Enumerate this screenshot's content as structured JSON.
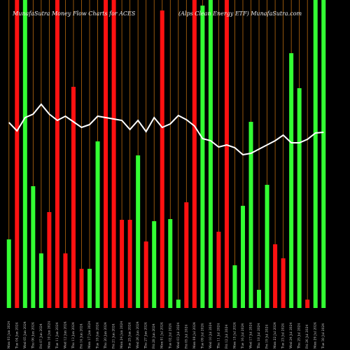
{
  "chart_data": {
    "type": "bar",
    "title": "MunafaSutra  Money Flow  Charts for ACES",
    "subtitle": "(Alps Clean Energy ETF) MunafaSutra.com",
    "categories": [
      "Mon 03 Jun 2024",
      "Tue 04 Jun 2024",
      "Wed 05 Jun 2024",
      "Thu 06 Jun 2024",
      "Fri 07 Jun 2024",
      "Mon 10 Jun 2024",
      "Tue 11 Jun 2024",
      "Wed 12 Jun 2024",
      "Thu 13 Jun 2024",
      "Fri 14 Jun 2024",
      "Mon 17 Jun 2024",
      "Tue 18 Jun 2024",
      "Thu 20 Jun 2024",
      "Fri 21 Jun 2024",
      "Mon 24 Jun 2024",
      "Tue 25 Jun 2024",
      "Wed 26 Jun 2024",
      "Thu 27 Jun 2024",
      "Fri 28 Jun 2024",
      "Mon 01 Jul 2024",
      "Tue 02 Jul 2024",
      "Wed 03 Jul 2024",
      "Fri 05 Jul 2024",
      "Mon 08 Jul 2024",
      "Tue 09 Jul 2024",
      "Wed 10 Jul 2024",
      "Thu 11 Jul 2024",
      "Fri 12 Jul 2024",
      "Mon 15 Jul 2024",
      "Tue 16 Jul 2024",
      "Wed 17 Jul 2024",
      "Thu 18 Jul 2024",
      "Fri 19 Jul 2024",
      "Mon 22 Jul 2024",
      "Tue 23 Jul 2024",
      "Wed 24 Jul 2024",
      "Thu 25 Jul 2024",
      "Fri 26 Jul 2024",
      "Mon 29 Jul 2024",
      "Tue 30 Jul 2024"
    ],
    "values": [
      98,
      440,
      440,
      174,
      78,
      137,
      440,
      78,
      316,
      56,
      56,
      238,
      440,
      440,
      126,
      126,
      218,
      95,
      124,
      425,
      127,
      12,
      151,
      440,
      432,
      440,
      109,
      440,
      61,
      146,
      266,
      26,
      176,
      91,
      71,
      364,
      314,
      12,
      440,
      440
    ],
    "colors": [
      "#33ff33",
      "#ff1111",
      "#33ff33",
      "#33ff33",
      "#33ff33",
      "#ff1111",
      "#ff1111",
      "#ff1111",
      "#ff1111",
      "#ff1111",
      "#33ff33",
      "#33ff33",
      "#ff1111",
      "#ff1111",
      "#ff1111",
      "#ff1111",
      "#33ff33",
      "#ff1111",
      "#33ff33",
      "#ff1111",
      "#33ff33",
      "#33ff33",
      "#ff1111",
      "#ff1111",
      "#33ff33",
      "#33ff33",
      "#ff1111",
      "#ff1111",
      "#33ff33",
      "#33ff33",
      "#33ff33",
      "#33ff33",
      "#33ff33",
      "#ff1111",
      "#ff1111",
      "#33ff33",
      "#33ff33",
      "#ff1111",
      "#33ff33",
      "#33ff33"
    ],
    "line": {
      "color": "#ffffff",
      "values": [
        265,
        253,
        272,
        277,
        291,
        277,
        268,
        274,
        266,
        258,
        262,
        274,
        272,
        270,
        268,
        255,
        268,
        252,
        272,
        258,
        263,
        275,
        269,
        260,
        242,
        239,
        230,
        233,
        229,
        219,
        221,
        227,
        233,
        239,
        247,
        236,
        236,
        241,
        250,
        251
      ]
    },
    "ylim": [
      0,
      440
    ],
    "grid_color": "#b86a10"
  }
}
